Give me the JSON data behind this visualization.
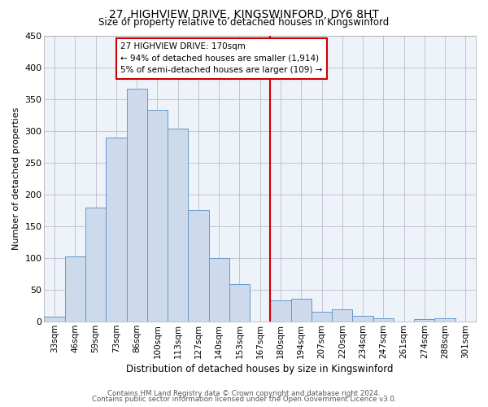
{
  "title": "27, HIGHVIEW DRIVE, KINGSWINFORD, DY6 8HT",
  "subtitle": "Size of property relative to detached houses in Kingswinford",
  "xlabel": "Distribution of detached houses by size in Kingswinford",
  "ylabel": "Number of detached properties",
  "bar_labels": [
    "33sqm",
    "46sqm",
    "59sqm",
    "73sqm",
    "86sqm",
    "100sqm",
    "113sqm",
    "127sqm",
    "140sqm",
    "153sqm",
    "167sqm",
    "180sqm",
    "194sqm",
    "207sqm",
    "220sqm",
    "234sqm",
    "247sqm",
    "261sqm",
    "274sqm",
    "288sqm",
    "301sqm"
  ],
  "bar_values": [
    8,
    103,
    180,
    290,
    367,
    333,
    304,
    176,
    100,
    59,
    0,
    33,
    36,
    15,
    19,
    9,
    5,
    0,
    4,
    5,
    0
  ],
  "bar_color": "#ccdaeb",
  "bar_edgecolor": "#6699cc",
  "vline_color": "#cc0000",
  "annotation_line1": "27 HIGHVIEW DRIVE: 170sqm",
  "annotation_line2": "← 94% of detached houses are smaller (1,914)",
  "annotation_line3": "5% of semi-detached houses are larger (109) →",
  "annotation_box_edgecolor": "#cc0000",
  "ylim": [
    0,
    450
  ],
  "yticks": [
    0,
    50,
    100,
    150,
    200,
    250,
    300,
    350,
    400,
    450
  ],
  "footer_line1": "Contains HM Land Registry data © Crown copyright and database right 2024.",
  "footer_line2": "Contains public sector information licensed under the Open Government Licence v3.0.",
  "plot_bg_color": "#eef3f9",
  "fig_bg_color": "#ffffff",
  "grid_color": "#bbbbcc"
}
